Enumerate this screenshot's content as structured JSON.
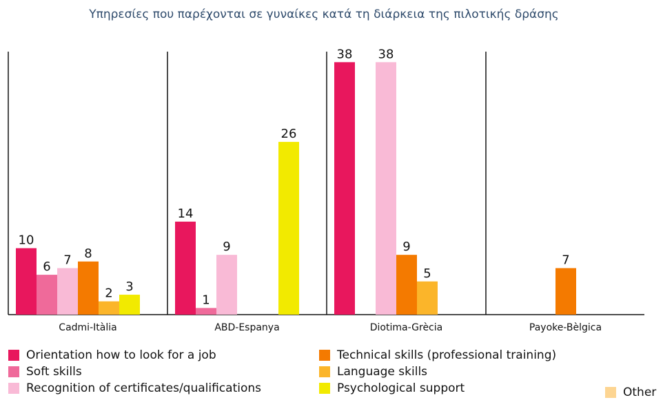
{
  "chart_data": {
    "type": "bar",
    "title": "Υπηρεσίες που παρέχονται σε γυναίκες κατά τη διάρκεια της πιλοτικής δράσης",
    "categories": [
      "Cadmi-Itàlia",
      "ABD-Espanya",
      "Diotima-Grècia",
      "Payoke-Bèlgica"
    ],
    "series": [
      {
        "name": "Orientation how to look for  a job",
        "color": "#e8175d",
        "values": [
          10,
          14,
          38,
          null
        ]
      },
      {
        "name": "Soft skills",
        "color": "#ef6a9a",
        "values": [
          6,
          1,
          null,
          null
        ]
      },
      {
        "name": "Recognition of certificates/qualifications",
        "color": "#f9bad6",
        "values": [
          7,
          9,
          38,
          null
        ]
      },
      {
        "name": "Technical skills (professional training)",
        "color": "#f47a00",
        "values": [
          8,
          null,
          9,
          7
        ]
      },
      {
        "name": "Language skills",
        "color": "#fbb52a",
        "values": [
          2,
          null,
          5,
          null
        ]
      },
      {
        "name": "Psychological support",
        "color": "#f2ea00",
        "values": [
          3,
          26,
          null,
          null
        ]
      },
      {
        "name": "Other",
        "color": "#fdd592",
        "values": [
          null,
          null,
          null,
          null
        ]
      }
    ],
    "ylim": [
      0,
      40
    ]
  }
}
